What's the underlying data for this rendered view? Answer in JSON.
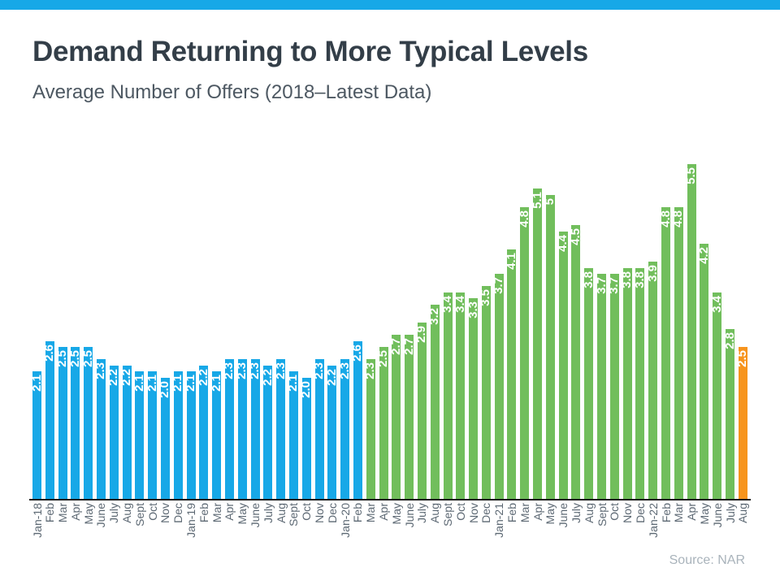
{
  "page": {
    "title": "Demand Returning to More Typical Levels",
    "subtitle": "Average Number of Offers (2018–Latest Data)",
    "source": "Source: NAR",
    "accent_bar_color": "#17A8E7"
  },
  "chart_data": {
    "type": "bar",
    "title": "Demand Returning to More Typical Levels",
    "subtitle": "Average Number of Offers (2018–Latest Data)",
    "xlabel": "",
    "ylabel": "",
    "ylim": [
      0,
      5.5
    ],
    "grid": false,
    "legend": false,
    "y_axis_shown": false,
    "bar_label_color": "#ffffff",
    "axis_label_color": "#5C6873",
    "axis_line_color": "#1A1A1A",
    "categories": [
      "Jan-18",
      "Feb",
      "Mar",
      "Apr",
      "May",
      "June",
      "July",
      "Aug",
      "Sept",
      "Oct",
      "Nov",
      "Dec",
      "Jan-19",
      "Feb",
      "Mar",
      "Apr",
      "May",
      "June",
      "July",
      "Aug",
      "Sept",
      "Oct",
      "Nov",
      "Dec",
      "Jan-20",
      "Feb",
      "Mar",
      "Apr",
      "May",
      "June",
      "July",
      "Aug",
      "Sept",
      "Oct",
      "Nov",
      "Dec",
      "Jan-21",
      "Feb",
      "Mar",
      "Apr",
      "May",
      "June",
      "July",
      "Aug",
      "Sept",
      "Oct",
      "Nov",
      "Dec",
      "Jan-22",
      "Feb",
      "Mar",
      "Apr",
      "May",
      "June",
      "July",
      "Aug"
    ],
    "values": [
      2.1,
      2.6,
      2.5,
      2.5,
      2.5,
      2.3,
      2.2,
      2.2,
      2.1,
      2.1,
      2.0,
      2.1,
      2.1,
      2.2,
      2.1,
      2.3,
      2.3,
      2.3,
      2.2,
      2.3,
      2.1,
      2.0,
      2.3,
      2.2,
      2.3,
      2.6,
      2.3,
      2.5,
      2.7,
      2.7,
      2.9,
      3.2,
      3.4,
      3.4,
      3.3,
      3.5,
      3.7,
      4.1,
      4.8,
      5.1,
      5,
      4.4,
      4.5,
      3.8,
      3.7,
      3.7,
      3.8,
      3.8,
      3.9,
      4.8,
      4.8,
      5.5,
      4.2,
      3.4,
      2.8,
      2.5
    ],
    "value_labels": [
      "2.1",
      "2.6",
      "2.5",
      "2.5",
      "2.5",
      "2.3",
      "2.2",
      "2.2",
      "2.1",
      "2.1",
      "2.0",
      "2.1",
      "2.1",
      "2.2",
      "2.1",
      "2.3",
      "2.3",
      "2.3",
      "2.2",
      "2.3",
      "2.1",
      "2.0",
      "2.3",
      "2.2",
      "2.3",
      "2.6",
      "2.3",
      "2.5",
      "2.7",
      "2.7",
      "2.9",
      "3.2",
      "3.4",
      "3.4",
      "3.3",
      "3.5",
      "3.7",
      "4.1",
      "4.8",
      "5.1",
      "5",
      "4.4",
      "4.5",
      "3.8",
      "3.7",
      "3.7",
      "3.8",
      "3.8",
      "3.9",
      "4.8",
      "4.8",
      "5.5",
      "4.2",
      "3.4",
      "2.8",
      "2.5"
    ],
    "color_segments": [
      {
        "hex": "#17A8E7",
        "count": 26
      },
      {
        "hex": "#71BE5C",
        "count": 29
      },
      {
        "hex": "#F7941D",
        "count": 1
      }
    ]
  }
}
